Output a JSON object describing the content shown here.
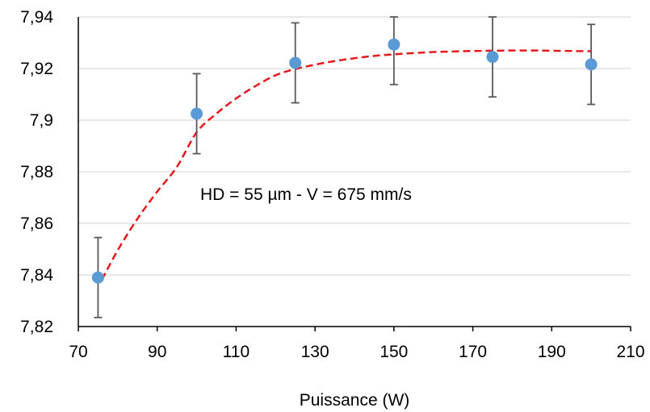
{
  "chart_data": {
    "type": "scatter",
    "title": "",
    "xlabel": "Puissance (W)",
    "ylabel": "",
    "xlim": [
      70,
      210
    ],
    "ylim": [
      7.82,
      7.94
    ],
    "x_ticks": [
      70,
      90,
      110,
      130,
      150,
      170,
      190,
      210
    ],
    "x_tick_labels": [
      "70",
      "90",
      "110",
      "130",
      "150",
      "170",
      "190",
      "210"
    ],
    "y_ticks": [
      7.82,
      7.84,
      7.86,
      7.88,
      7.9,
      7.92,
      7.94
    ],
    "y_tick_labels": [
      "7,82",
      "7,84",
      "7,86",
      "7,88",
      "7,9",
      "7,92",
      "7,94"
    ],
    "grid": "horizontal",
    "legend": "none",
    "annotation": "HD = 55 µm - V = 675 mm/s",
    "series": [
      {
        "type": "scatter",
        "color": "#5b9bd5",
        "x": [
          75,
          100,
          125,
          150,
          175,
          200
        ],
        "y": [
          7.839,
          7.9025,
          7.9222,
          7.9293,
          7.9245,
          7.9216
        ],
        "error": [
          0.0155,
          0.0155,
          0.0155,
          0.0155,
          0.0155,
          0.0155
        ]
      },
      {
        "type": "line",
        "style": "dashed",
        "color": "#e31a1c",
        "x": [
          76,
          80,
          85,
          90,
          95,
          100,
          105,
          110,
          115,
          120,
          125,
          130,
          135,
          140,
          145,
          150,
          155,
          160,
          165,
          170,
          175,
          180,
          185,
          190,
          195,
          200
        ],
        "y": [
          7.8382,
          7.8496,
          7.8618,
          7.8723,
          7.8819,
          7.8953,
          7.9025,
          7.9084,
          7.9133,
          7.9174,
          7.9198,
          7.9215,
          7.9229,
          7.924,
          7.9249,
          7.9255,
          7.926,
          7.9264,
          7.9266,
          7.9268,
          7.9269,
          7.927,
          7.927,
          7.9269,
          7.9268,
          7.9267
        ]
      }
    ],
    "colors": {
      "grid": "#d9d9d9",
      "axis": "#000000",
      "marker": "#5b9bd5",
      "error_bar": "#595959",
      "trend": "#e31a1c"
    }
  }
}
